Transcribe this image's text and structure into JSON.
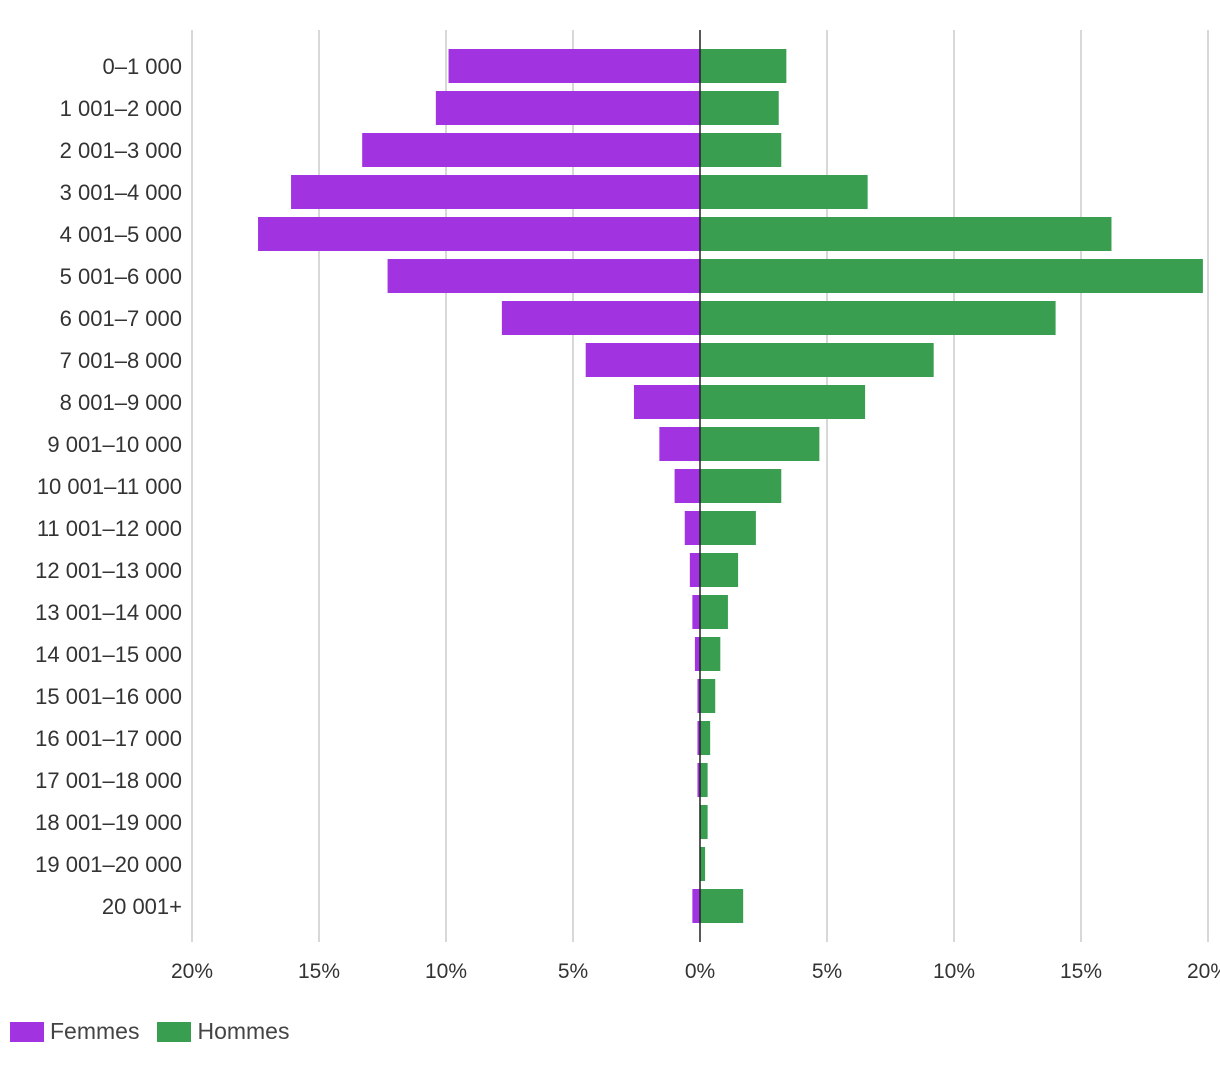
{
  "chart_data": {
    "type": "bar",
    "orientation": "horizontal-diverging",
    "title": "",
    "xlabel": "",
    "ylabel": "",
    "xlim": [
      -20,
      20
    ],
    "x_ticks": [
      -20,
      -15,
      -10,
      -5,
      0,
      5,
      10,
      15,
      20
    ],
    "x_tick_labels": [
      "20%",
      "15%",
      "10%",
      "5%",
      "0%",
      "5%",
      "10%",
      "15%",
      "20%"
    ],
    "grid": true,
    "legend_position": "bottom-left",
    "categories": [
      "0–1 000",
      "1 001–2 000",
      "2 001–3 000",
      "3 001–4 000",
      "4 001–5 000",
      "5 001–6 000",
      "6 001–7 000",
      "7 001–8 000",
      "8 001–9 000",
      "9 001–10 000",
      "10 001–11 000",
      "11 001–12 000",
      "12 001–13 000",
      "13 001–14 000",
      "14 001–15 000",
      "15 001–16 000",
      "16 001–17 000",
      "17 001–18 000",
      "18 001–19 000",
      "19 001–20 000",
      "20 001+"
    ],
    "series": [
      {
        "name": "Femmes",
        "color": "#a133e0",
        "side": "left",
        "values": [
          9.9,
          10.4,
          13.3,
          16.1,
          17.4,
          12.3,
          7.8,
          4.5,
          2.6,
          1.6,
          1.0,
          0.6,
          0.4,
          0.3,
          0.2,
          0.1,
          0.1,
          0.1,
          0.0,
          0.0,
          0.3
        ]
      },
      {
        "name": "Hommes",
        "color": "#3a9e51",
        "side": "right",
        "values": [
          3.4,
          3.1,
          3.2,
          6.6,
          16.2,
          19.8,
          14.0,
          9.2,
          6.5,
          4.7,
          3.2,
          2.2,
          1.5,
          1.1,
          0.8,
          0.6,
          0.4,
          0.3,
          0.3,
          0.2,
          1.7
        ]
      }
    ]
  }
}
